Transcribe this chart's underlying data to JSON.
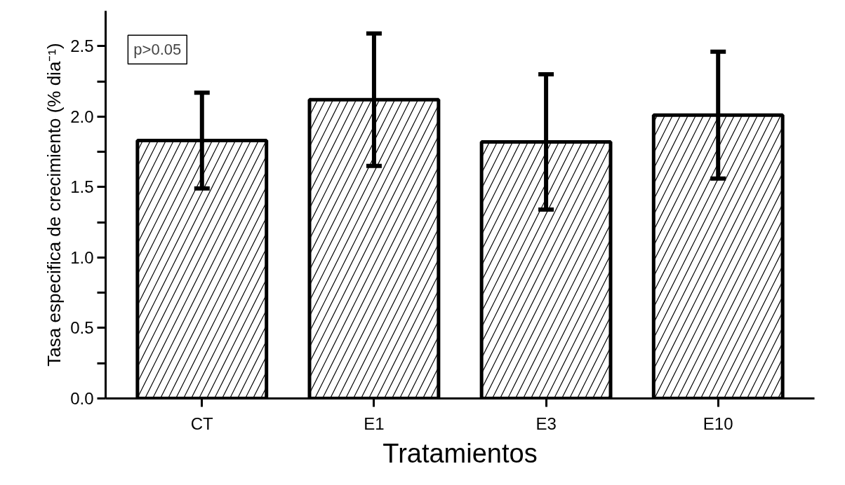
{
  "chart_data": {
    "type": "bar",
    "xlabel": "Tratamientos",
    "ylabel": "Tasa especifica de crecimiento (% dia⁻¹)",
    "categories": [
      "CT",
      "E1",
      "E3",
      "E10"
    ],
    "values": [
      1.83,
      2.12,
      1.82,
      2.01
    ],
    "errors": [
      0.34,
      0.47,
      0.48,
      0.45
    ],
    "color": "#000000",
    "ylim": [
      0,
      2.75
    ],
    "yticks": [
      {
        "value": 0,
        "label": "0.0"
      },
      {
        "value": 0.25,
        "label": null
      },
      {
        "value": 0.5,
        "label": "0.5"
      },
      {
        "value": 0.75,
        "label": null
      },
      {
        "value": 1.0,
        "label": "1.0"
      },
      {
        "value": 1.25,
        "label": null
      },
      {
        "value": 1.5,
        "label": "1.5"
      },
      {
        "value": 1.75,
        "label": null
      },
      {
        "value": 2.0,
        "label": "2.0"
      },
      {
        "value": 2.25,
        "label": null
      },
      {
        "value": 2.5,
        "label": "2.5"
      }
    ],
    "annotations": [
      "p>0.05"
    ],
    "grid": false
  }
}
